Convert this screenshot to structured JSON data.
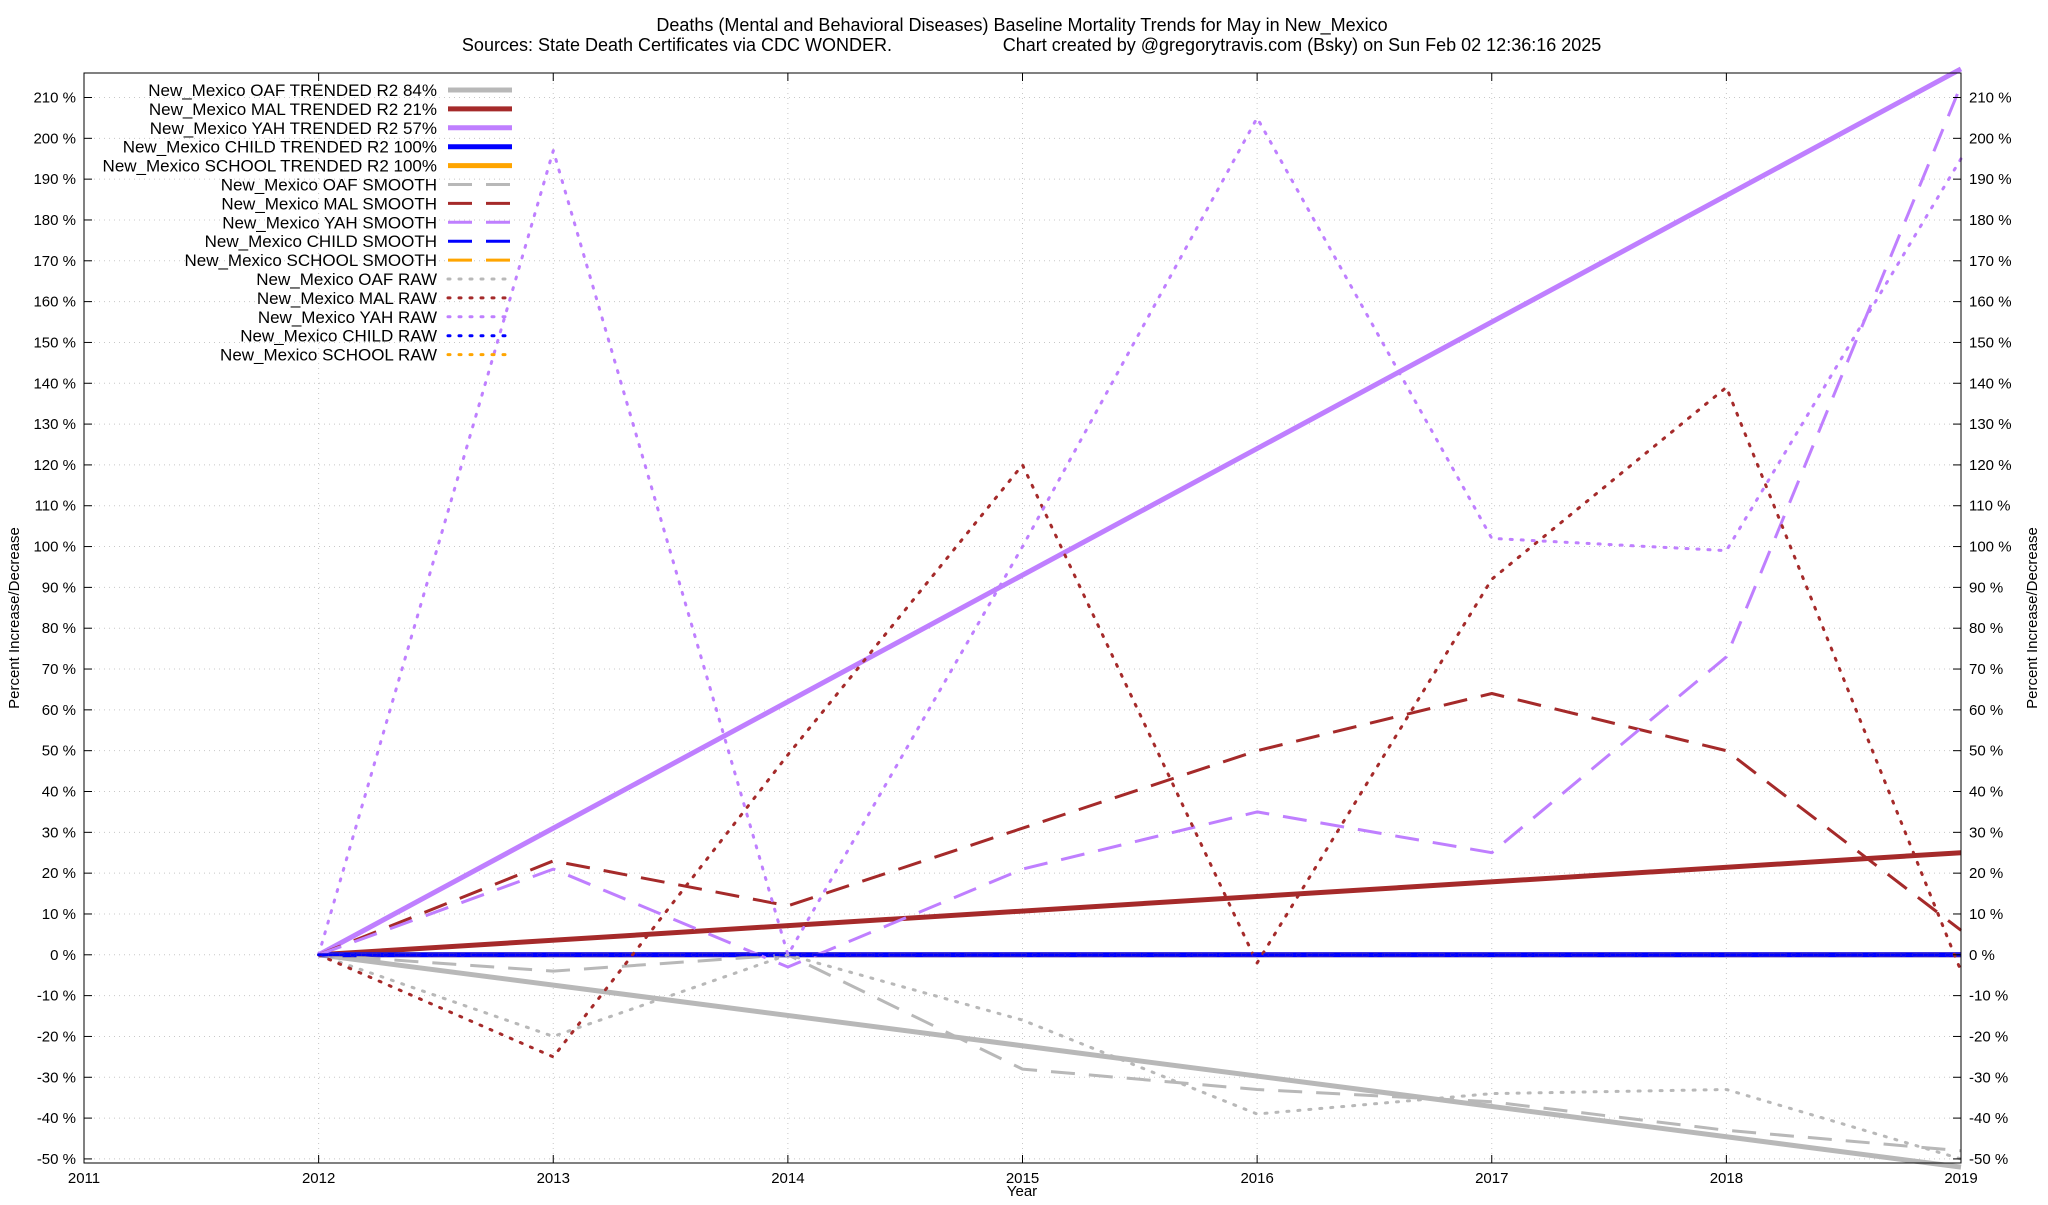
{
  "chart_data": {
    "type": "line",
    "title": "Deaths (Mental and Behavioral Diseases)  Baseline Mortality Trends for May in New_Mexico",
    "subtitle_left": "Sources: State Death Certificates via CDC WONDER.",
    "subtitle_right": "Chart created by @gregorytravis.com (Bsky) on Sun Feb 02 12:36:16 2025",
    "xlabel": "Year",
    "ylabel": "Percent Increase/Decrease",
    "xlim": [
      2011,
      2019
    ],
    "ylim": [
      -51,
      216
    ],
    "x_ticks": [
      2011,
      2012,
      2013,
      2014,
      2015,
      2016,
      2017,
      2018,
      2019
    ],
    "y_ticks": [
      -50,
      -40,
      -30,
      -20,
      -10,
      0,
      10,
      20,
      30,
      40,
      50,
      60,
      70,
      80,
      90,
      100,
      110,
      120,
      130,
      140,
      150,
      160,
      170,
      180,
      190,
      200,
      210
    ],
    "y_tick_suffix": " %",
    "grid": true,
    "legend_position": "top-left",
    "series": [
      {
        "name": "New_Mexico OAF TRENDED R2  84%",
        "color": "#b8b8b8",
        "style": "solid",
        "x": [
          2012,
          2019
        ],
        "y": [
          0,
          -52
        ]
      },
      {
        "name": "New_Mexico MAL TRENDED R2  21%",
        "color": "#a52a2a",
        "style": "solid",
        "x": [
          2012,
          2019
        ],
        "y": [
          0,
          25
        ]
      },
      {
        "name": "New_Mexico YAH TRENDED R2  57%",
        "color": "#bf7fff",
        "style": "solid",
        "x": [
          2012,
          2019
        ],
        "y": [
          0,
          217
        ]
      },
      {
        "name": "New_Mexico CHILD TRENDED R2 100%",
        "color": "#0000ff",
        "style": "solid",
        "x": [
          2012,
          2019
        ],
        "y": [
          0,
          0
        ]
      },
      {
        "name": "New_Mexico SCHOOL TRENDED R2 100%",
        "color": "#ffa500",
        "style": "solid",
        "x": [
          2012,
          2019
        ],
        "y": [
          0,
          0
        ]
      },
      {
        "name": "New_Mexico OAF SMOOTH",
        "color": "#b8b8b8",
        "style": "dash",
        "x": [
          2012,
          2013,
          2014,
          2015,
          2016,
          2017,
          2018,
          2019
        ],
        "y": [
          0,
          -4,
          0,
          -28,
          -33,
          -36,
          -43,
          -48
        ]
      },
      {
        "name": "New_Mexico MAL SMOOTH",
        "color": "#a52a2a",
        "style": "dash",
        "x": [
          2012,
          2013,
          2014,
          2015,
          2016,
          2017,
          2018,
          2019
        ],
        "y": [
          0,
          23,
          12,
          31,
          50,
          64,
          50,
          6
        ]
      },
      {
        "name": "New_Mexico YAH SMOOTH",
        "color": "#bf7fff",
        "style": "dash",
        "x": [
          2012,
          2013,
          2014,
          2015,
          2016,
          2017,
          2018,
          2019
        ],
        "y": [
          0,
          21,
          -3,
          21,
          35,
          25,
          73,
          213
        ]
      },
      {
        "name": "New_Mexico CHILD SMOOTH",
        "color": "#0000ff",
        "style": "dash",
        "x": [
          2012,
          2019
        ],
        "y": [
          0,
          0
        ]
      },
      {
        "name": "New_Mexico SCHOOL SMOOTH",
        "color": "#ffa500",
        "style": "dash",
        "x": [
          2012,
          2019
        ],
        "y": [
          0,
          0
        ]
      },
      {
        "name": "New_Mexico OAF RAW",
        "color": "#b8b8b8",
        "style": "dot",
        "x": [
          2012,
          2013,
          2014,
          2015,
          2016,
          2017,
          2018,
          2019
        ],
        "y": [
          0,
          -20,
          0,
          -16,
          -39,
          -34,
          -33,
          -50
        ]
      },
      {
        "name": "New_Mexico MAL RAW",
        "color": "#a52a2a",
        "style": "dot",
        "x": [
          2012,
          2013,
          2014,
          2015,
          2016,
          2017,
          2018,
          2019
        ],
        "y": [
          0,
          -25,
          49,
          120,
          -2,
          92,
          139,
          -4
        ]
      },
      {
        "name": "New_Mexico YAH RAW",
        "color": "#bf7fff",
        "style": "dot",
        "x": [
          2012,
          2013,
          2014,
          2015,
          2016,
          2017,
          2018,
          2019
        ],
        "y": [
          0,
          197,
          0,
          100,
          205,
          102,
          99,
          195
        ]
      },
      {
        "name": "New_Mexico CHILD RAW",
        "color": "#0000ff",
        "style": "dot",
        "x": [
          2012,
          2019
        ],
        "y": [
          0,
          0
        ]
      },
      {
        "name": "New_Mexico SCHOOL RAW",
        "color": "#ffa500",
        "style": "dot",
        "x": [
          2012,
          2019
        ],
        "y": [
          0,
          0
        ]
      }
    ],
    "draw_order": [
      0,
      1,
      2,
      4,
      3,
      5,
      6,
      7,
      9,
      8,
      10,
      11,
      12,
      14,
      13
    ]
  }
}
